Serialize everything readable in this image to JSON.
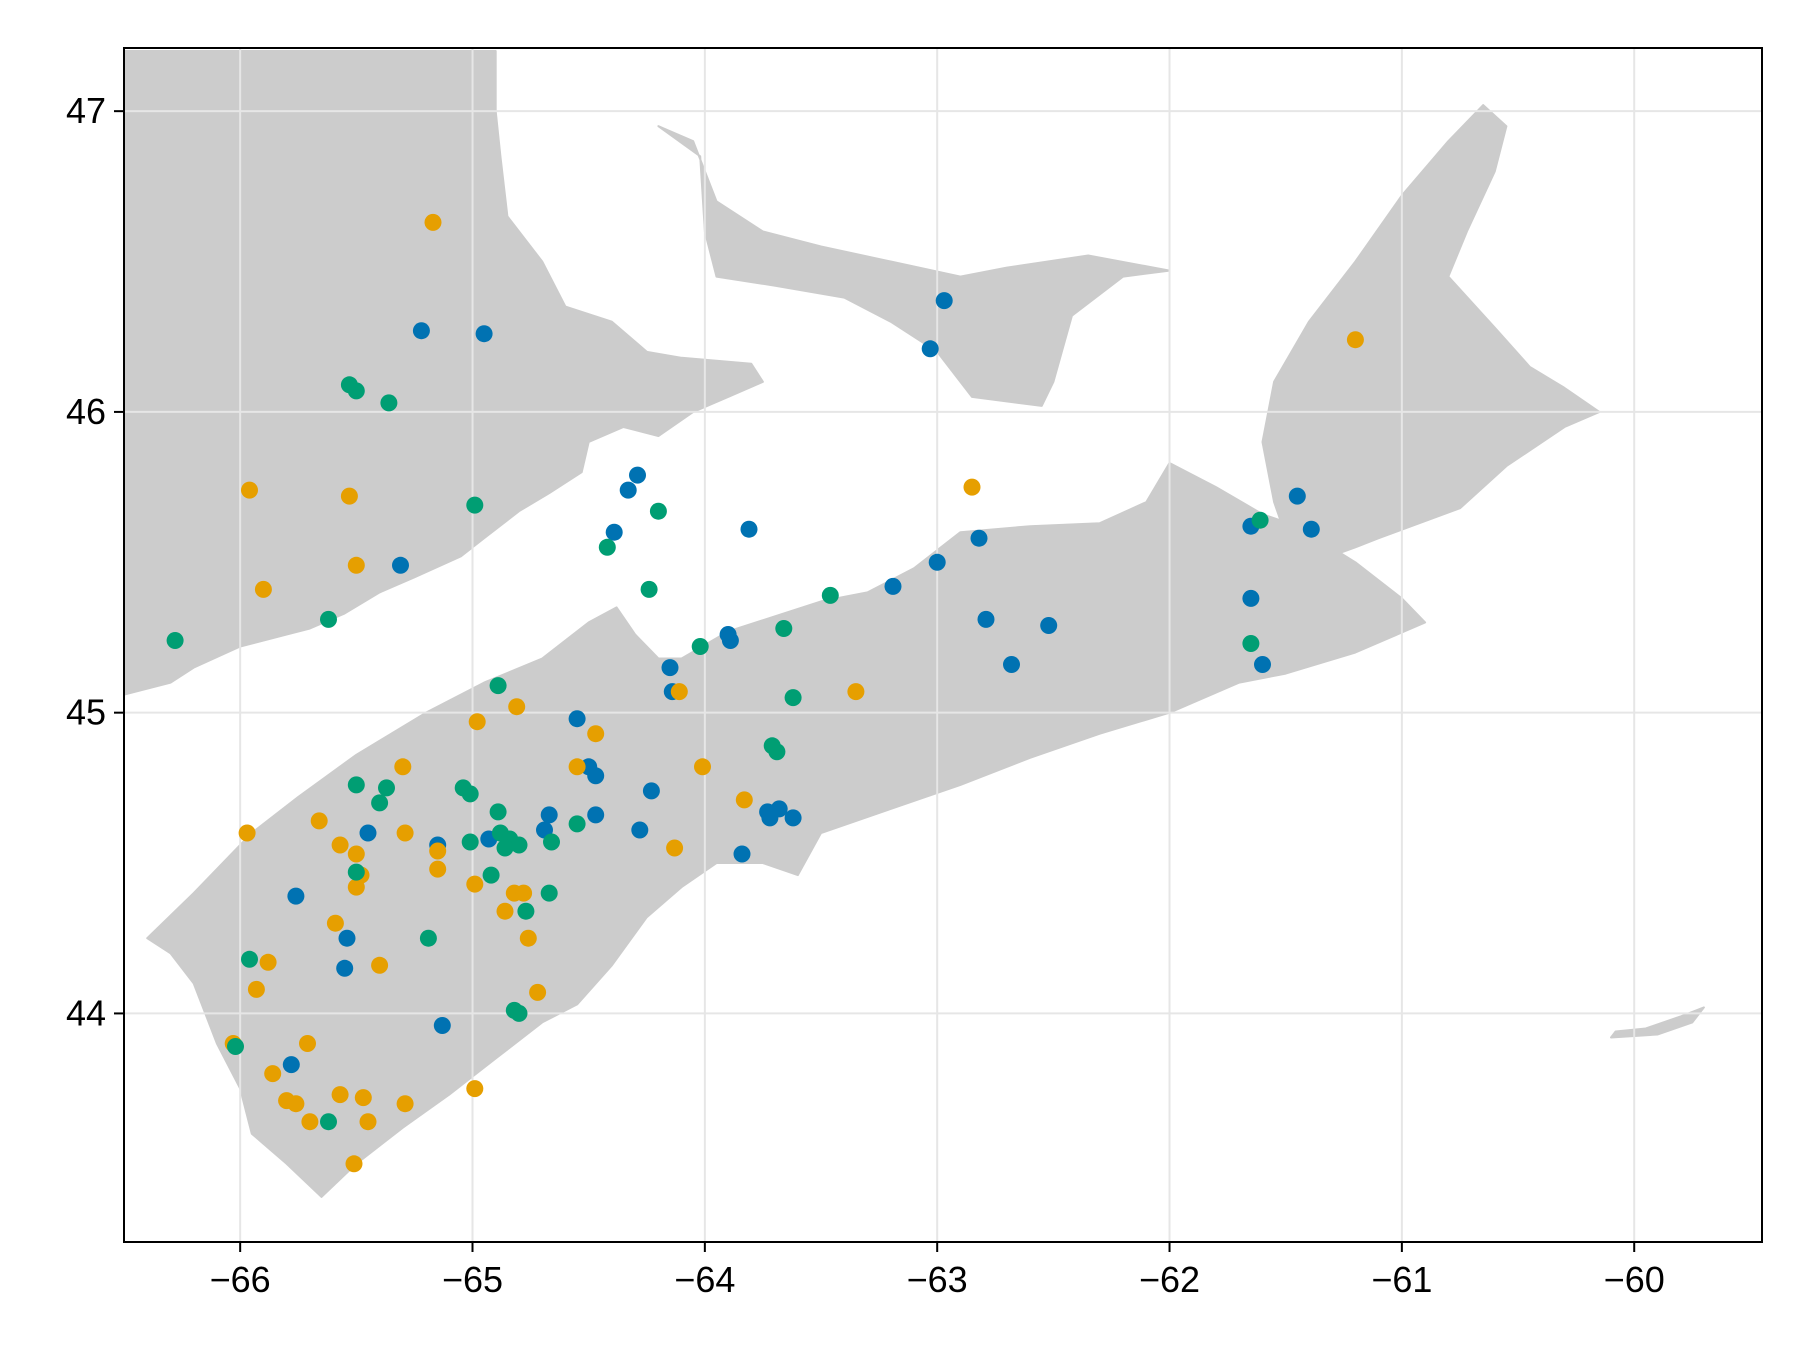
{
  "chart_data": {
    "type": "scatter",
    "title": "",
    "xlabel": "",
    "ylabel": "",
    "xlim": [
      -66.5,
      -59.45
    ],
    "ylim": [
      43.24,
      47.21
    ],
    "grid": true,
    "legend": "none",
    "x_ticks": [
      -66,
      -65,
      -64,
      -63,
      -62,
      -61,
      -60
    ],
    "x_tick_labels": [
      "−66",
      "−65",
      "−64",
      "−63",
      "−62",
      "−61",
      "−60"
    ],
    "y_ticks": [
      44,
      45,
      46,
      47
    ],
    "y_tick_labels": [
      "44",
      "45",
      "46",
      "47"
    ],
    "land_color": "#cccccc",
    "grid_color": "#e6e6e6",
    "colors": {
      "blue": "#0072b2",
      "orange": "#e69f00",
      "green": "#009e73"
    },
    "land": [
      {
        "name": "new-brunswick-landmass",
        "coords": [
          [
            -66.5,
            45.06
          ],
          [
            -66.3,
            45.1
          ],
          [
            -66.2,
            45.15
          ],
          [
            -66.0,
            45.22
          ],
          [
            -65.85,
            45.25
          ],
          [
            -65.7,
            45.28
          ],
          [
            -65.55,
            45.33
          ],
          [
            -65.4,
            45.4
          ],
          [
            -65.25,
            45.45
          ],
          [
            -65.05,
            45.52
          ],
          [
            -64.95,
            45.58
          ],
          [
            -64.8,
            45.67
          ],
          [
            -64.67,
            45.73
          ],
          [
            -64.53,
            45.8
          ],
          [
            -64.5,
            45.9
          ],
          [
            -64.35,
            45.95
          ],
          [
            -64.2,
            45.92
          ],
          [
            -64.05,
            46.0
          ],
          [
            -63.9,
            46.05
          ],
          [
            -63.75,
            46.1
          ],
          [
            -63.8,
            46.16
          ],
          [
            -64.1,
            46.18
          ],
          [
            -64.25,
            46.2
          ],
          [
            -64.4,
            46.3
          ],
          [
            -64.6,
            46.35
          ],
          [
            -64.7,
            46.5
          ],
          [
            -64.85,
            46.65
          ],
          [
            -64.88,
            46.85
          ],
          [
            -64.9,
            47.0
          ],
          [
            -64.9,
            47.2
          ],
          [
            -66.5,
            47.2
          ]
        ]
      },
      {
        "name": "nova-scotia-peninsula",
        "coords": [
          [
            -66.4,
            44.25
          ],
          [
            -66.2,
            44.4
          ],
          [
            -65.95,
            44.6
          ],
          [
            -65.75,
            44.72
          ],
          [
            -65.5,
            44.86
          ],
          [
            -65.2,
            45.0
          ],
          [
            -64.95,
            45.1
          ],
          [
            -64.7,
            45.18
          ],
          [
            -64.5,
            45.3
          ],
          [
            -64.38,
            45.35
          ],
          [
            -64.3,
            45.26
          ],
          [
            -64.2,
            45.18
          ],
          [
            -64.1,
            45.18
          ],
          [
            -63.9,
            45.27
          ],
          [
            -63.7,
            45.32
          ],
          [
            -63.5,
            45.37
          ],
          [
            -63.3,
            45.4
          ],
          [
            -63.1,
            45.48
          ],
          [
            -62.9,
            45.6
          ],
          [
            -62.6,
            45.62
          ],
          [
            -62.3,
            45.63
          ],
          [
            -62.1,
            45.7
          ],
          [
            -62.0,
            45.83
          ],
          [
            -61.8,
            45.75
          ],
          [
            -61.6,
            45.66
          ],
          [
            -61.45,
            45.62
          ],
          [
            -61.2,
            45.5
          ],
          [
            -61.0,
            45.38
          ],
          [
            -60.9,
            45.3
          ],
          [
            -61.2,
            45.2
          ],
          [
            -61.5,
            45.13
          ],
          [
            -61.7,
            45.1
          ],
          [
            -62.0,
            45.0
          ],
          [
            -62.3,
            44.93
          ],
          [
            -62.6,
            44.85
          ],
          [
            -62.9,
            44.76
          ],
          [
            -63.2,
            44.68
          ],
          [
            -63.5,
            44.6
          ],
          [
            -63.6,
            44.46
          ],
          [
            -63.75,
            44.5
          ],
          [
            -63.95,
            44.5
          ],
          [
            -64.1,
            44.42
          ],
          [
            -64.25,
            44.32
          ],
          [
            -64.4,
            44.16
          ],
          [
            -64.55,
            44.03
          ],
          [
            -64.7,
            43.97
          ],
          [
            -64.9,
            43.85
          ],
          [
            -65.1,
            43.73
          ],
          [
            -65.3,
            43.62
          ],
          [
            -65.5,
            43.5
          ],
          [
            -65.65,
            43.39
          ],
          [
            -65.8,
            43.5
          ],
          [
            -65.95,
            43.6
          ],
          [
            -66.0,
            43.75
          ],
          [
            -66.1,
            43.9
          ],
          [
            -66.2,
            44.1
          ],
          [
            -66.3,
            44.2
          ]
        ]
      },
      {
        "name": "cape-breton-island",
        "coords": [
          [
            -61.45,
            45.48
          ],
          [
            -61.2,
            45.55
          ],
          [
            -61.1,
            45.58
          ],
          [
            -60.75,
            45.68
          ],
          [
            -60.55,
            45.82
          ],
          [
            -60.3,
            45.95
          ],
          [
            -60.15,
            46.0
          ],
          [
            -60.3,
            46.08
          ],
          [
            -60.45,
            46.15
          ],
          [
            -60.6,
            46.28
          ],
          [
            -60.8,
            46.45
          ],
          [
            -60.72,
            46.6
          ],
          [
            -60.6,
            46.8
          ],
          [
            -60.55,
            46.95
          ],
          [
            -60.65,
            47.02
          ],
          [
            -60.8,
            46.9
          ],
          [
            -61.0,
            46.72
          ],
          [
            -61.2,
            46.5
          ],
          [
            -61.4,
            46.3
          ],
          [
            -61.55,
            46.1
          ],
          [
            -61.6,
            45.9
          ],
          [
            -61.55,
            45.7
          ]
        ]
      },
      {
        "name": "prince-edward-island",
        "coords": [
          [
            -64.2,
            46.95
          ],
          [
            -64.02,
            46.85
          ],
          [
            -64.0,
            46.6
          ],
          [
            -63.95,
            46.45
          ],
          [
            -63.7,
            46.42
          ],
          [
            -63.4,
            46.38
          ],
          [
            -63.2,
            46.3
          ],
          [
            -63.0,
            46.2
          ],
          [
            -62.85,
            46.05
          ],
          [
            -62.55,
            46.02
          ],
          [
            -62.5,
            46.1
          ],
          [
            -62.42,
            46.32
          ],
          [
            -62.2,
            46.45
          ],
          [
            -62.0,
            46.47
          ],
          [
            -62.35,
            46.52
          ],
          [
            -62.7,
            46.48
          ],
          [
            -62.9,
            46.45
          ],
          [
            -63.2,
            46.5
          ],
          [
            -63.5,
            46.55
          ],
          [
            -63.75,
            46.6
          ],
          [
            -63.95,
            46.7
          ],
          [
            -64.05,
            46.9
          ]
        ]
      },
      {
        "name": "sable-island",
        "coords": [
          [
            -60.1,
            43.92
          ],
          [
            -59.9,
            43.93
          ],
          [
            -59.75,
            43.97
          ],
          [
            -59.7,
            44.02
          ],
          [
            -59.8,
            43.99
          ],
          [
            -59.95,
            43.95
          ],
          [
            -60.08,
            43.94
          ]
        ]
      }
    ],
    "series": [
      {
        "color": "blue",
        "points": [
          [
            -65.22,
            46.27
          ],
          [
            -64.95,
            46.26
          ],
          [
            -65.31,
            45.49
          ],
          [
            -64.29,
            45.79
          ],
          [
            -64.33,
            45.74
          ],
          [
            -64.39,
            45.6
          ],
          [
            -63.81,
            45.61
          ],
          [
            -64.15,
            45.15
          ],
          [
            -64.14,
            45.07
          ],
          [
            -63.9,
            45.26
          ],
          [
            -63.89,
            45.24
          ],
          [
            -64.55,
            44.98
          ],
          [
            -64.5,
            44.82
          ],
          [
            -64.47,
            44.79
          ],
          [
            -64.47,
            44.66
          ],
          [
            -64.67,
            44.66
          ],
          [
            -64.69,
            44.61
          ],
          [
            -64.93,
            44.58
          ],
          [
            -65.15,
            44.56
          ],
          [
            -65.45,
            44.6
          ],
          [
            -65.76,
            44.39
          ],
          [
            -65.54,
            44.25
          ],
          [
            -65.55,
            44.15
          ],
          [
            -65.13,
            43.96
          ],
          [
            -65.78,
            43.83
          ],
          [
            -64.23,
            44.74
          ],
          [
            -64.28,
            44.61
          ],
          [
            -63.84,
            44.53
          ],
          [
            -63.73,
            44.67
          ],
          [
            -63.72,
            44.65
          ],
          [
            -63.68,
            44.68
          ],
          [
            -63.62,
            44.65
          ],
          [
            -63.03,
            46.21
          ],
          [
            -62.97,
            46.37
          ],
          [
            -62.82,
            45.58
          ],
          [
            -63.0,
            45.5
          ],
          [
            -63.19,
            45.42
          ],
          [
            -62.79,
            45.31
          ],
          [
            -62.68,
            45.16
          ],
          [
            -62.52,
            45.29
          ],
          [
            -61.65,
            45.62
          ],
          [
            -61.45,
            45.72
          ],
          [
            -61.39,
            45.61
          ],
          [
            -61.65,
            45.38
          ],
          [
            -61.6,
            45.16
          ]
        ]
      },
      {
        "color": "orange",
        "points": [
          [
            -65.17,
            46.63
          ],
          [
            -65.96,
            45.74
          ],
          [
            -65.53,
            45.72
          ],
          [
            -65.5,
            45.49
          ],
          [
            -65.9,
            45.41
          ],
          [
            -64.11,
            45.07
          ],
          [
            -63.35,
            45.07
          ],
          [
            -64.98,
            44.97
          ],
          [
            -64.81,
            45.02
          ],
          [
            -64.47,
            44.93
          ],
          [
            -64.55,
            44.82
          ],
          [
            -64.01,
            44.82
          ],
          [
            -63.83,
            44.71
          ],
          [
            -65.3,
            44.82
          ],
          [
            -65.29,
            44.6
          ],
          [
            -65.97,
            44.6
          ],
          [
            -65.66,
            44.64
          ],
          [
            -65.57,
            44.56
          ],
          [
            -65.5,
            44.53
          ],
          [
            -65.48,
            44.46
          ],
          [
            -65.5,
            44.42
          ],
          [
            -65.15,
            44.54
          ],
          [
            -65.15,
            44.48
          ],
          [
            -64.99,
            44.43
          ],
          [
            -64.82,
            44.4
          ],
          [
            -64.78,
            44.4
          ],
          [
            -64.86,
            44.34
          ],
          [
            -64.76,
            44.25
          ],
          [
            -65.59,
            44.3
          ],
          [
            -65.4,
            44.16
          ],
          [
            -65.88,
            44.17
          ],
          [
            -65.93,
            44.08
          ],
          [
            -64.72,
            44.07
          ],
          [
            -64.13,
            44.55
          ],
          [
            -66.03,
            43.9
          ],
          [
            -65.71,
            43.9
          ],
          [
            -65.86,
            43.8
          ],
          [
            -65.8,
            43.71
          ],
          [
            -65.76,
            43.7
          ],
          [
            -65.57,
            43.73
          ],
          [
            -65.47,
            43.72
          ],
          [
            -65.7,
            43.64
          ],
          [
            -65.45,
            43.64
          ],
          [
            -65.29,
            43.7
          ],
          [
            -64.99,
            43.75
          ],
          [
            -65.51,
            43.5
          ],
          [
            -62.85,
            45.75
          ],
          [
            -61.2,
            46.24
          ]
        ]
      },
      {
        "color": "green",
        "points": [
          [
            -65.53,
            46.09
          ],
          [
            -65.5,
            46.07
          ],
          [
            -65.36,
            46.03
          ],
          [
            -64.99,
            45.69
          ],
          [
            -64.2,
            45.67
          ],
          [
            -64.42,
            45.55
          ],
          [
            -64.24,
            45.41
          ],
          [
            -66.28,
            45.24
          ],
          [
            -65.62,
            45.31
          ],
          [
            -63.46,
            45.39
          ],
          [
            -64.02,
            45.22
          ],
          [
            -63.66,
            45.28
          ],
          [
            -63.62,
            45.05
          ],
          [
            -64.89,
            45.09
          ],
          [
            -63.71,
            44.89
          ],
          [
            -63.69,
            44.87
          ],
          [
            -65.5,
            44.76
          ],
          [
            -65.37,
            44.75
          ],
          [
            -65.4,
            44.7
          ],
          [
            -65.04,
            44.75
          ],
          [
            -65.01,
            44.73
          ],
          [
            -64.89,
            44.67
          ],
          [
            -64.88,
            44.6
          ],
          [
            -64.84,
            44.58
          ],
          [
            -64.8,
            44.56
          ],
          [
            -64.86,
            44.55
          ],
          [
            -65.01,
            44.57
          ],
          [
            -64.66,
            44.57
          ],
          [
            -64.55,
            44.63
          ],
          [
            -65.5,
            44.47
          ],
          [
            -64.92,
            44.46
          ],
          [
            -64.67,
            44.4
          ],
          [
            -64.77,
            44.34
          ],
          [
            -65.19,
            44.25
          ],
          [
            -65.96,
            44.18
          ],
          [
            -64.82,
            44.01
          ],
          [
            -64.8,
            44.0
          ],
          [
            -66.02,
            43.89
          ],
          [
            -65.62,
            43.64
          ],
          [
            -61.65,
            45.23
          ],
          [
            -61.61,
            45.64
          ]
        ]
      }
    ]
  }
}
